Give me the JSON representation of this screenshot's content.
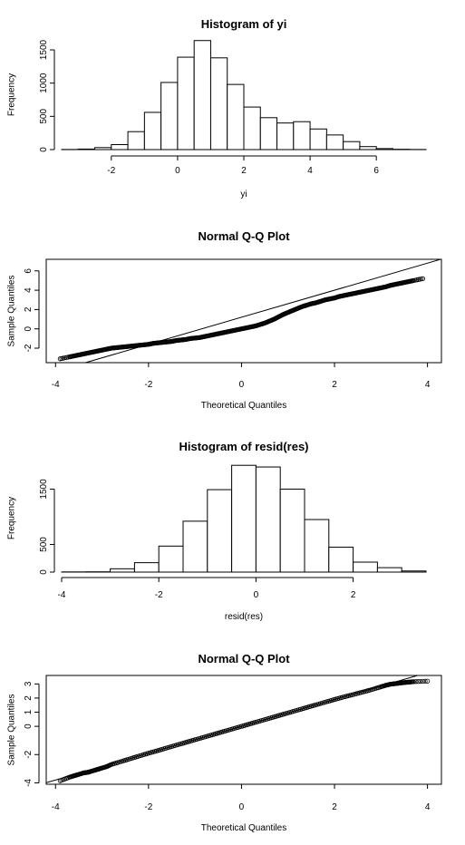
{
  "chart_data": [
    {
      "type": "bar",
      "subtype": "histogram",
      "title": "Histogram of yi",
      "xlabel": "yi",
      "ylabel": "Frequency",
      "bin_edges": [
        -3.5,
        -3,
        -2.5,
        -2,
        -1.5,
        -1,
        -0.5,
        0,
        0.5,
        1,
        1.5,
        2,
        2.5,
        3,
        3.5,
        4,
        4.5,
        5,
        5.5,
        6,
        6.5,
        7,
        7.5
      ],
      "values": [
        2,
        8,
        30,
        75,
        270,
        560,
        1010,
        1390,
        1640,
        1380,
        980,
        640,
        480,
        400,
        420,
        310,
        220,
        120,
        45,
        15,
        5,
        2
      ],
      "xticks": [
        -2,
        0,
        2,
        4,
        6
      ],
      "yticks": [
        0,
        500,
        1000,
        1500
      ],
      "xlim": [
        -3.5,
        7.5
      ],
      "ylim": [
        0,
        1650
      ]
    },
    {
      "type": "scatter",
      "subtype": "qqplot",
      "title": "Normal Q-Q Plot",
      "xlabel": "Theoretical Quantiles",
      "ylabel": "Sample Quantiles",
      "xticks": [
        -4,
        -2,
        0,
        2,
        4
      ],
      "yticks": [
        -2,
        0,
        2,
        4,
        6
      ],
      "xlim": [
        -4.2,
        4.3
      ],
      "ylim": [
        -3.5,
        7.2
      ],
      "reference_line": {
        "intercept": 1.2,
        "slope": 1.4
      },
      "points": [
        [
          -3.9,
          -3.1
        ],
        [
          -3.7,
          -2.9
        ],
        [
          -3.6,
          -2.8
        ],
        [
          -3.5,
          -2.7
        ],
        [
          -3.4,
          -2.6
        ],
        [
          -3.3,
          -2.5
        ],
        [
          -3.2,
          -2.4
        ],
        [
          -3.1,
          -2.3
        ],
        [
          -3.0,
          -2.2
        ],
        [
          -2.9,
          -2.1
        ],
        [
          -2.8,
          -2.0
        ],
        [
          -2.7,
          -1.95
        ],
        [
          -2.6,
          -1.9
        ],
        [
          -2.5,
          -1.85
        ],
        [
          -2.4,
          -1.8
        ],
        [
          -2.3,
          -1.75
        ],
        [
          -2.2,
          -1.7
        ],
        [
          -2.1,
          -1.65
        ],
        [
          -2.0,
          -1.6
        ],
        [
          -1.9,
          -1.5
        ],
        [
          -1.8,
          -1.45
        ],
        [
          -1.7,
          -1.4
        ],
        [
          -1.6,
          -1.35
        ],
        [
          -1.5,
          -1.3
        ],
        [
          -1.4,
          -1.2
        ],
        [
          -1.3,
          -1.15
        ],
        [
          -1.2,
          -1.1
        ],
        [
          -1.1,
          -1.0
        ],
        [
          -1.0,
          -0.95
        ],
        [
          -0.9,
          -0.9
        ],
        [
          -0.8,
          -0.8
        ],
        [
          -0.7,
          -0.7
        ],
        [
          -0.6,
          -0.6
        ],
        [
          -0.5,
          -0.5
        ],
        [
          -0.4,
          -0.4
        ],
        [
          -0.3,
          -0.3
        ],
        [
          -0.2,
          -0.2
        ],
        [
          -0.1,
          -0.1
        ],
        [
          0.0,
          0.0
        ],
        [
          0.1,
          0.1
        ],
        [
          0.2,
          0.2
        ],
        [
          0.3,
          0.3
        ],
        [
          0.4,
          0.45
        ],
        [
          0.5,
          0.6
        ],
        [
          0.6,
          0.8
        ],
        [
          0.7,
          1.0
        ],
        [
          0.8,
          1.25
        ],
        [
          0.9,
          1.5
        ],
        [
          1.0,
          1.7
        ],
        [
          1.1,
          1.9
        ],
        [
          1.2,
          2.1
        ],
        [
          1.3,
          2.3
        ],
        [
          1.4,
          2.45
        ],
        [
          1.5,
          2.6
        ],
        [
          1.6,
          2.7
        ],
        [
          1.7,
          2.85
        ],
        [
          1.8,
          3.0
        ],
        [
          1.9,
          3.1
        ],
        [
          2.0,
          3.2
        ],
        [
          2.1,
          3.35
        ],
        [
          2.2,
          3.45
        ],
        [
          2.3,
          3.55
        ],
        [
          2.4,
          3.65
        ],
        [
          2.5,
          3.75
        ],
        [
          2.6,
          3.85
        ],
        [
          2.7,
          3.95
        ],
        [
          2.8,
          4.05
        ],
        [
          2.9,
          4.15
        ],
        [
          3.0,
          4.25
        ],
        [
          3.1,
          4.35
        ],
        [
          3.2,
          4.5
        ],
        [
          3.3,
          4.6
        ],
        [
          3.4,
          4.7
        ],
        [
          3.5,
          4.8
        ],
        [
          3.6,
          4.9
        ],
        [
          3.7,
          5.0
        ],
        [
          3.9,
          5.2
        ]
      ]
    },
    {
      "type": "bar",
      "subtype": "histogram",
      "title": "Histogram of resid(res)",
      "xlabel": "resid(res)",
      "ylabel": "Frequency",
      "bin_edges": [
        -4,
        -3.5,
        -3,
        -2.5,
        -2,
        -1.5,
        -1,
        -0.5,
        0,
        0.5,
        1,
        1.5,
        2,
        2.5,
        3,
        3.5
      ],
      "values": [
        3,
        5,
        60,
        170,
        470,
        920,
        1490,
        1930,
        1900,
        1500,
        950,
        450,
        180,
        80,
        20
      ],
      "xticks": [
        -4,
        -2,
        0,
        2
      ],
      "yticks": [
        0,
        500,
        1500
      ],
      "xlim": [
        -4,
        3.5
      ],
      "ylim": [
        0,
        1950
      ]
    },
    {
      "type": "scatter",
      "subtype": "qqplot",
      "title": "Normal Q-Q Plot",
      "xlabel": "Theoretical Quantiles",
      "ylabel": "Sample Quantiles",
      "xticks": [
        -4,
        -2,
        0,
        2,
        4
      ],
      "yticks": [
        -4,
        -2,
        0,
        1,
        2,
        3
      ],
      "xlim": [
        -4.2,
        4.3
      ],
      "ylim": [
        -4.1,
        3.6
      ],
      "reference_line": {
        "intercept": 0.0,
        "slope": 0.95
      },
      "points": [
        [
          -3.9,
          -3.85
        ],
        [
          -3.7,
          -3.6
        ],
        [
          -3.6,
          -3.5
        ],
        [
          -3.5,
          -3.4
        ],
        [
          -3.4,
          -3.3
        ],
        [
          -3.3,
          -3.25
        ],
        [
          -3.2,
          -3.15
        ],
        [
          -3.1,
          -3.05
        ],
        [
          -3.0,
          -2.95
        ],
        [
          -2.9,
          -2.85
        ],
        [
          -2.8,
          -2.7
        ],
        [
          -2.6,
          -2.5
        ],
        [
          -2.4,
          -2.3
        ],
        [
          -2.2,
          -2.1
        ],
        [
          -2.0,
          -1.9
        ],
        [
          -1.8,
          -1.72
        ],
        [
          -1.6,
          -1.52
        ],
        [
          -1.4,
          -1.33
        ],
        [
          -1.2,
          -1.14
        ],
        [
          -1.0,
          -0.95
        ],
        [
          -0.8,
          -0.76
        ],
        [
          -0.6,
          -0.57
        ],
        [
          -0.4,
          -0.38
        ],
        [
          -0.2,
          -0.19
        ],
        [
          0.0,
          0.0
        ],
        [
          0.2,
          0.19
        ],
        [
          0.4,
          0.38
        ],
        [
          0.6,
          0.57
        ],
        [
          0.8,
          0.76
        ],
        [
          1.0,
          0.95
        ],
        [
          1.2,
          1.14
        ],
        [
          1.4,
          1.33
        ],
        [
          1.6,
          1.52
        ],
        [
          1.8,
          1.71
        ],
        [
          2.0,
          1.9
        ],
        [
          2.2,
          2.08
        ],
        [
          2.4,
          2.25
        ],
        [
          2.6,
          2.42
        ],
        [
          2.8,
          2.6
        ],
        [
          3.0,
          2.8
        ],
        [
          3.1,
          2.9
        ],
        [
          3.2,
          2.98
        ],
        [
          3.3,
          3.02
        ],
        [
          3.4,
          3.06
        ],
        [
          3.5,
          3.1
        ],
        [
          3.6,
          3.13
        ],
        [
          3.7,
          3.16
        ],
        [
          4.0,
          3.2
        ]
      ]
    }
  ]
}
